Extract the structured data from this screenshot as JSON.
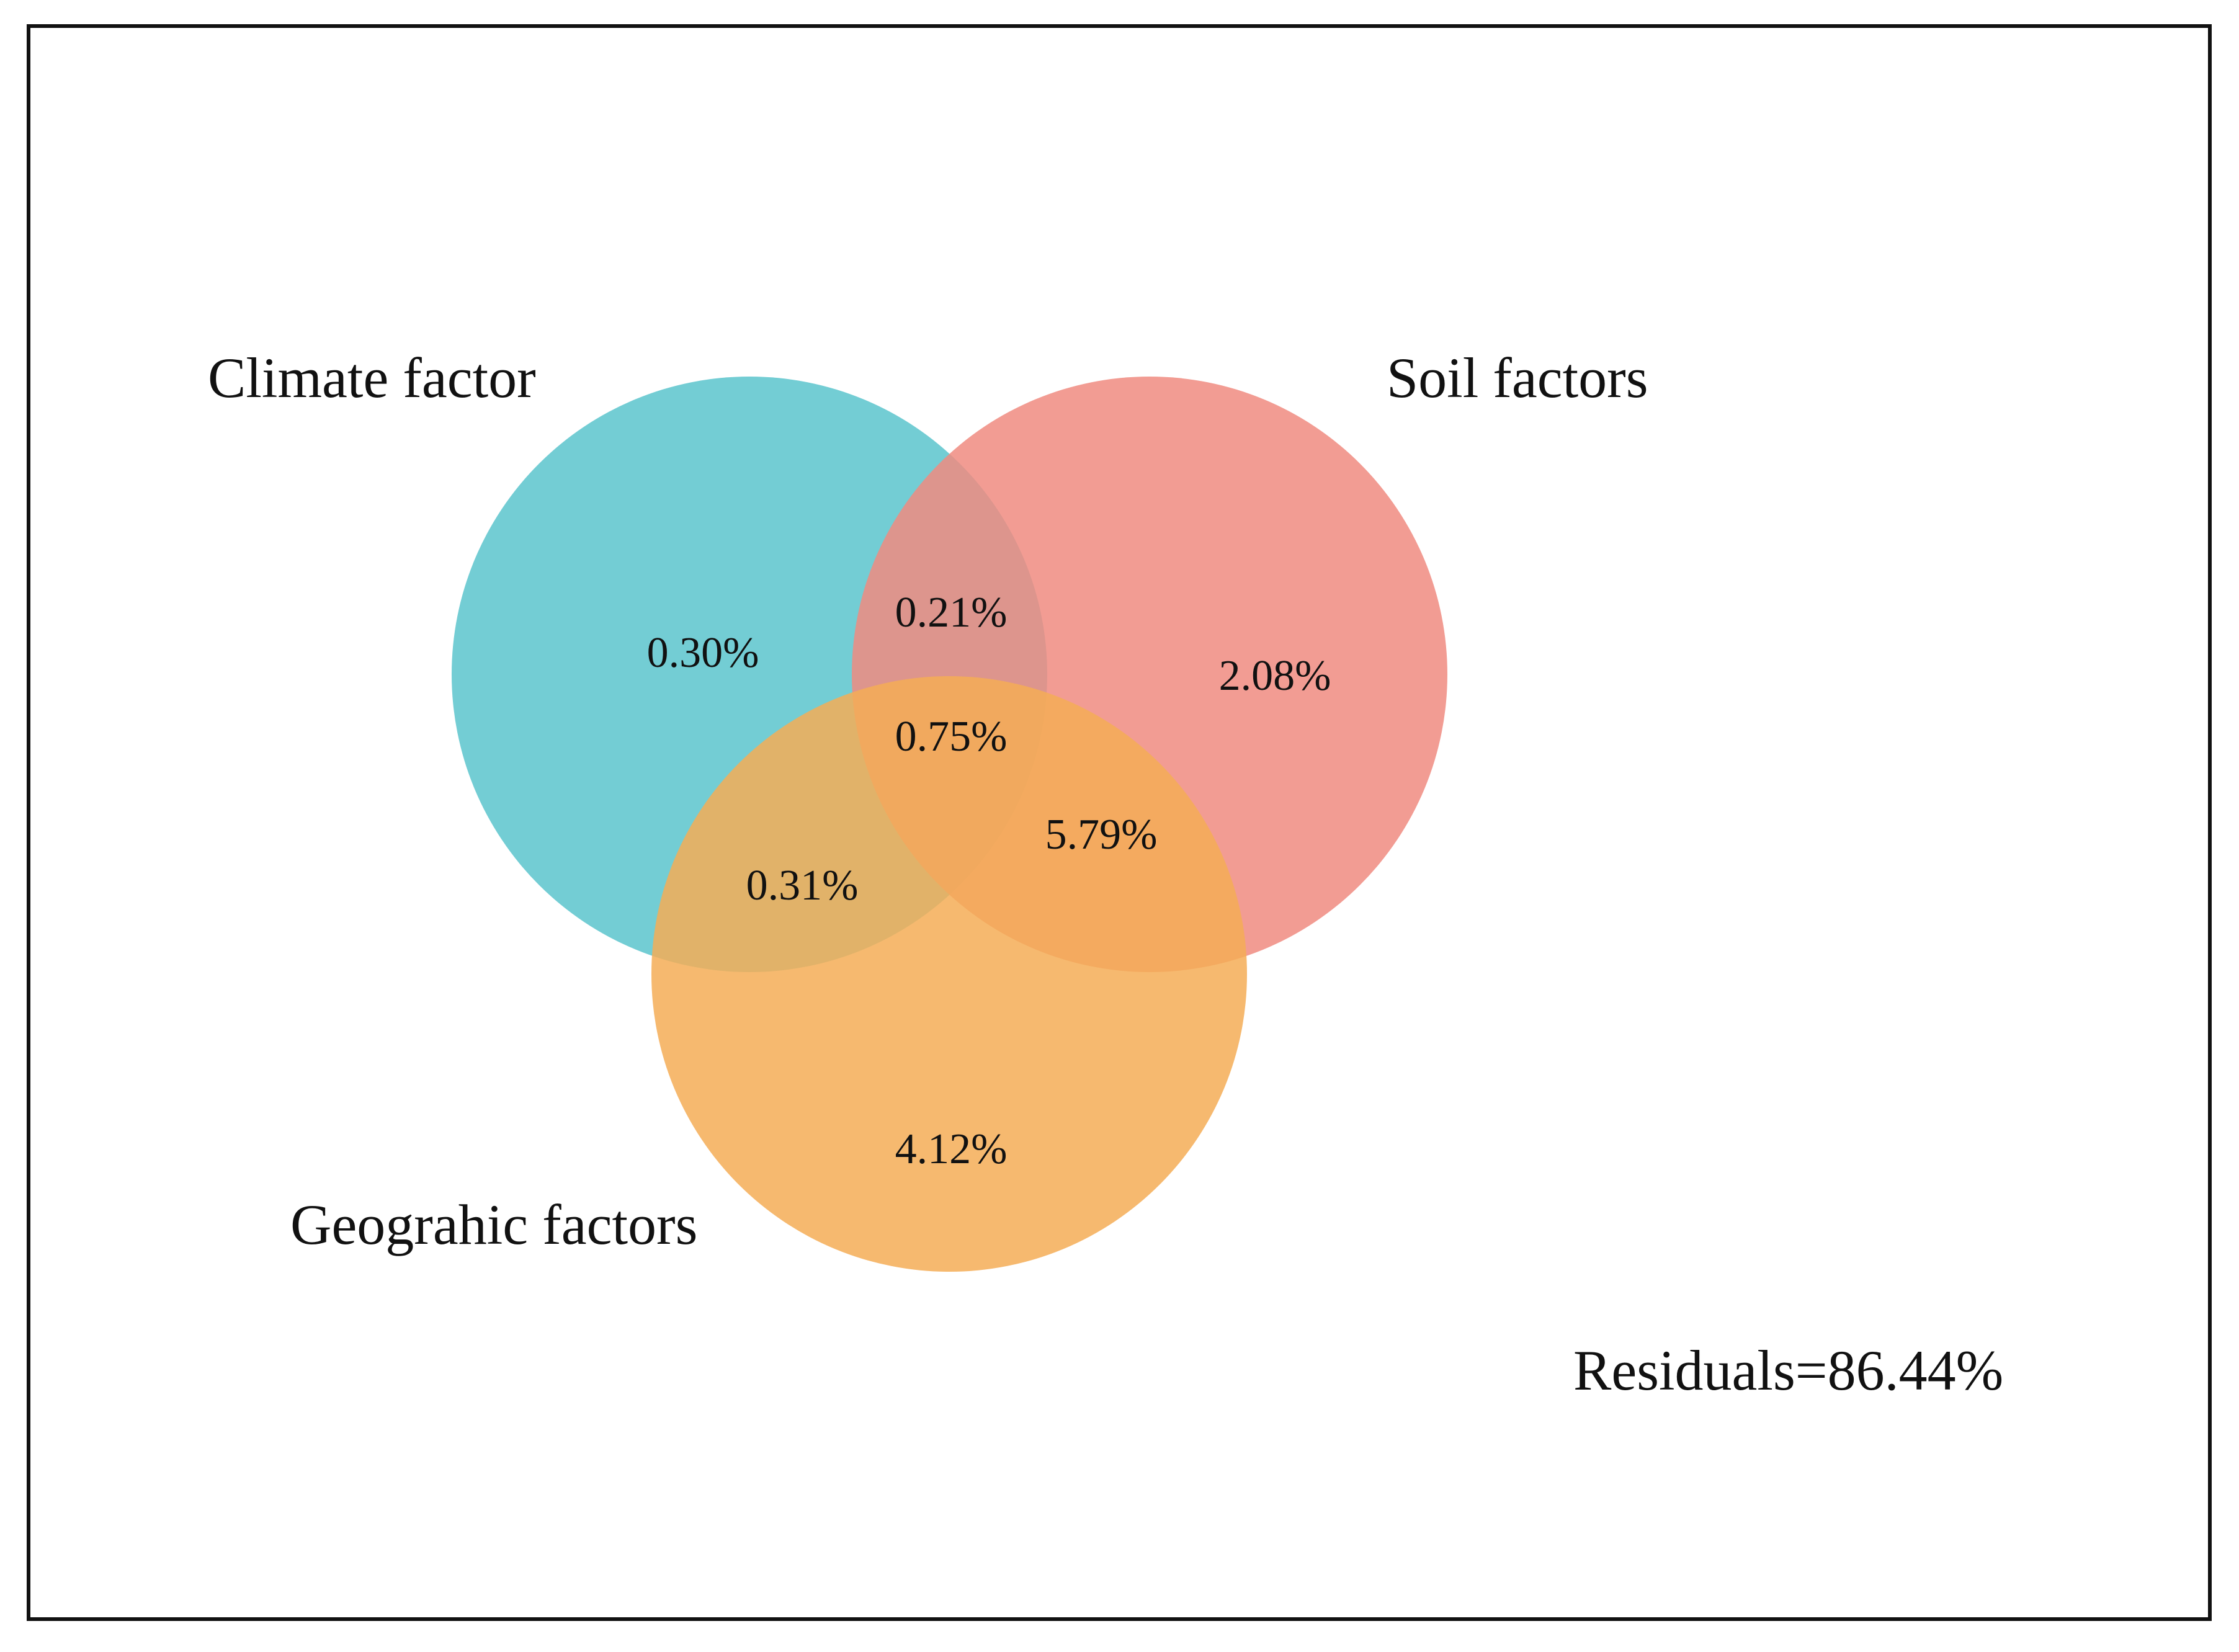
{
  "sets": [
    {
      "id": "climate",
      "label": "Climate factor",
      "color": "#5BC4CD"
    },
    {
      "id": "soil",
      "label": "Soil factors",
      "color": "#F08B80"
    },
    {
      "id": "geographic",
      "label": "Geograhic factors",
      "color": "#F4AD56"
    }
  ],
  "regions": {
    "climate_only": "0.30%",
    "soil_only": "2.08%",
    "geographic_only": "4.12%",
    "climate_soil": "0.21%",
    "climate_geographic": "0.31%",
    "soil_geographic": "5.79%",
    "all_three": "0.75%"
  },
  "residuals": "Residuals=86.44%"
}
